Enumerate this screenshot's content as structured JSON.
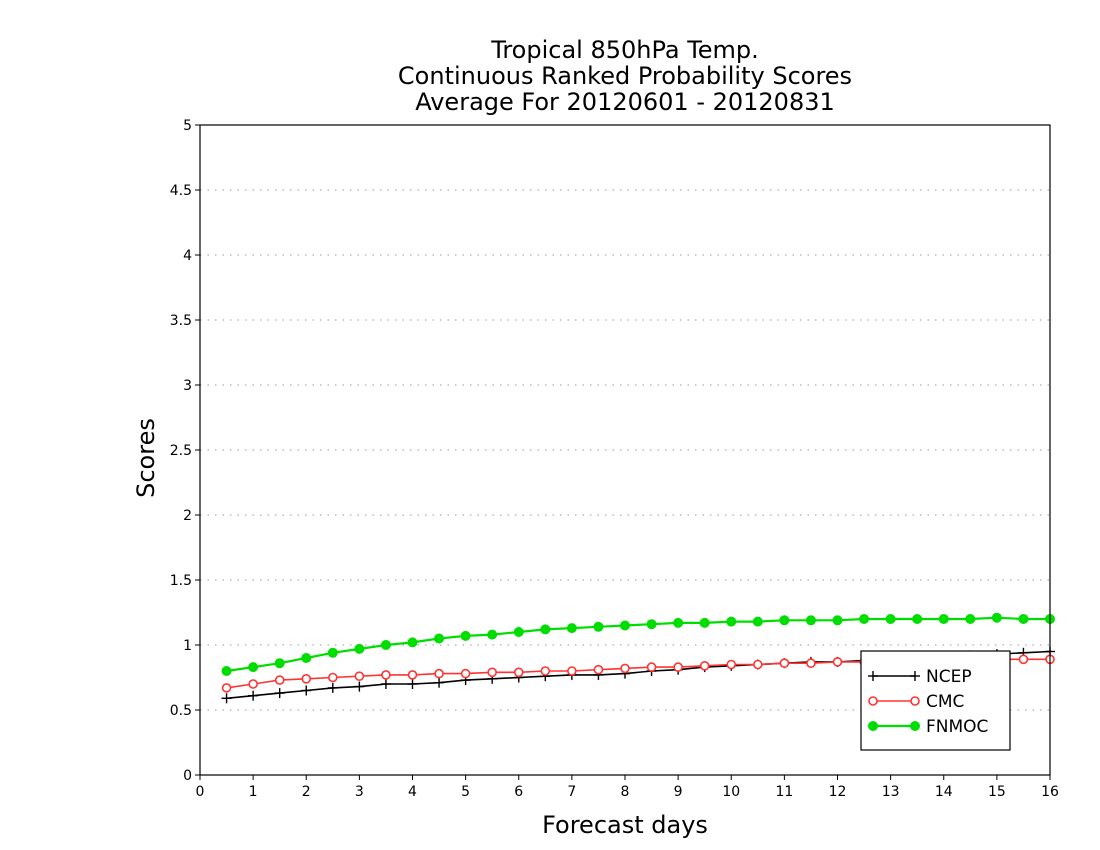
{
  "chart_data": {
    "type": "line",
    "title": [
      "Tropical 850hPa Temp.",
      "Continuous Ranked Probability Scores",
      "Average For 20120601 - 20120831"
    ],
    "xlabel": "Forecast days",
    "ylabel": "Scores",
    "xlim": [
      0,
      16
    ],
    "ylim": [
      0,
      5
    ],
    "xticks": [
      "0",
      "1",
      "2",
      "3",
      "4",
      "5",
      "6",
      "7",
      "8",
      "9",
      "10",
      "11",
      "12",
      "13",
      "14",
      "15",
      "16"
    ],
    "yticks": [
      "0",
      "0.5",
      "1",
      "1.5",
      "2",
      "2.5",
      "3",
      "3.5",
      "4",
      "4.5",
      "5"
    ],
    "grid": "horizontal dotted",
    "legend_position": "bottom-right",
    "x": [
      0.5,
      1,
      1.5,
      2,
      2.5,
      3,
      3.5,
      4,
      4.5,
      5,
      5.5,
      6,
      6.5,
      7,
      7.5,
      8,
      8.5,
      9,
      9.5,
      10,
      10.5,
      11,
      11.5,
      12,
      12.5,
      13,
      13.5,
      14,
      14.5,
      15,
      15.5,
      16
    ],
    "series": [
      {
        "name": "NCEP",
        "color": "#000000",
        "marker": "plus",
        "values": [
          0.59,
          0.61,
          0.63,
          0.65,
          0.67,
          0.68,
          0.7,
          0.7,
          0.71,
          0.73,
          0.74,
          0.75,
          0.76,
          0.77,
          0.77,
          0.78,
          0.8,
          0.81,
          0.83,
          0.84,
          0.85,
          0.86,
          0.87,
          0.87,
          0.88,
          0.89,
          0.9,
          0.91,
          0.92,
          0.93,
          0.94,
          0.95
        ]
      },
      {
        "name": "CMC",
        "color": "#ff3333",
        "marker": "open-circle",
        "values": [
          0.67,
          0.7,
          0.73,
          0.74,
          0.75,
          0.76,
          0.77,
          0.77,
          0.78,
          0.78,
          0.79,
          0.79,
          0.8,
          0.8,
          0.81,
          0.82,
          0.83,
          0.83,
          0.84,
          0.85,
          0.85,
          0.86,
          0.86,
          0.87,
          0.87,
          0.88,
          0.88,
          0.88,
          0.89,
          0.89,
          0.89,
          0.89
        ]
      },
      {
        "name": "FNMOC",
        "color": "#00dd00",
        "marker": "filled-circle",
        "values": [
          0.8,
          0.83,
          0.86,
          0.9,
          0.94,
          0.97,
          1.0,
          1.02,
          1.05,
          1.07,
          1.08,
          1.1,
          1.12,
          1.13,
          1.14,
          1.15,
          1.16,
          1.17,
          1.17,
          1.18,
          1.18,
          1.19,
          1.19,
          1.19,
          1.2,
          1.2,
          1.2,
          1.2,
          1.2,
          1.21,
          1.2,
          1.2
        ]
      }
    ]
  }
}
